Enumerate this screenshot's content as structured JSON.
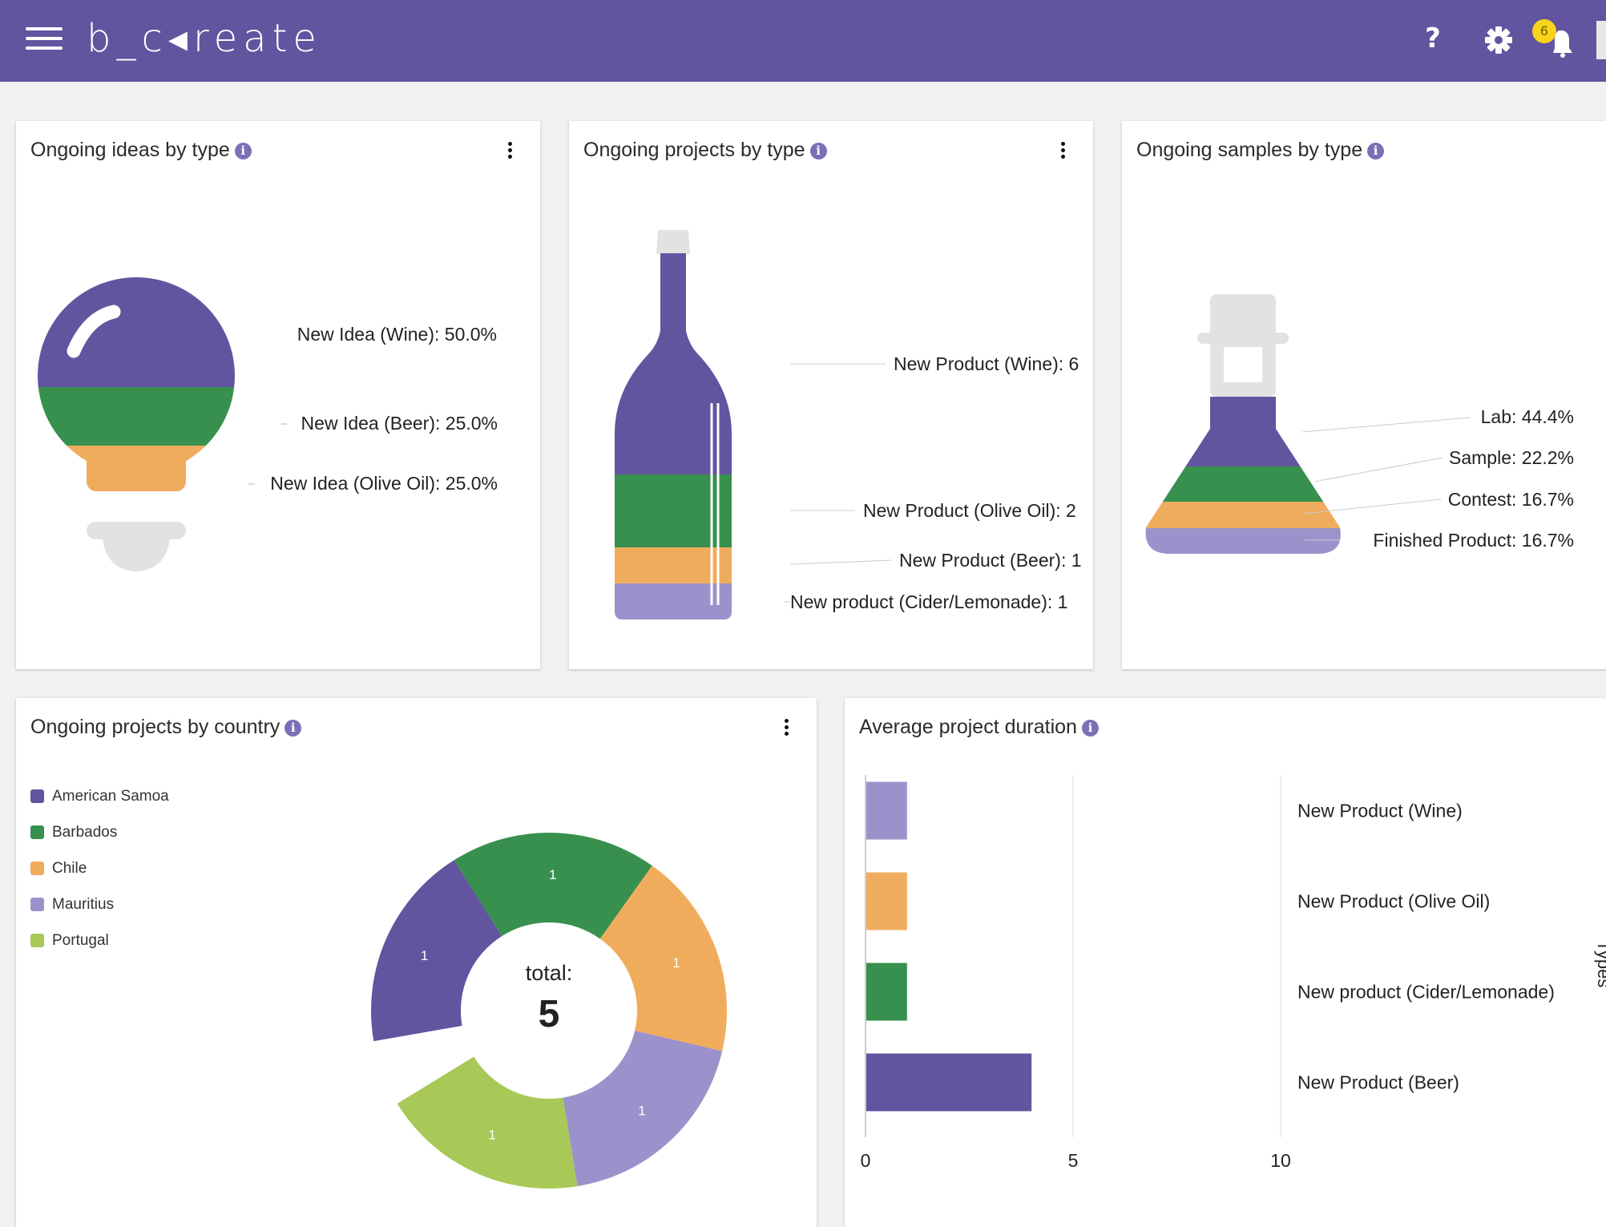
{
  "app": {
    "logo": "b_c◂reate"
  },
  "header": {
    "help_icon": "help-icon",
    "settings_icon": "gear-icon",
    "notifications_icon": "bell-icon",
    "notifications_count": "6"
  },
  "colors": {
    "purple": "#63549f",
    "green": "#38904e",
    "orange": "#f0ac5d",
    "lilac": "#9c92cb",
    "lime": "#a8c957",
    "grey": "#e2e2e2"
  },
  "ideas": {
    "title": "Ongoing ideas by type",
    "chart_data": {
      "type": "pie",
      "title": "Ongoing ideas by type",
      "labels": [
        "New Idea (Wine): 50.0%",
        "New Idea (Beer): 25.0%",
        "New Idea (Olive Oil): 25.0%"
      ],
      "categories": [
        "New Idea (Wine)",
        "New Idea (Beer)",
        "New Idea (Olive Oil)"
      ],
      "values": [
        50.0,
        25.0,
        25.0
      ]
    }
  },
  "projects_type": {
    "title": "Ongoing projects by type",
    "chart_data": {
      "type": "bar",
      "title": "Ongoing projects by type",
      "labels": [
        "New Product (Wine): 6",
        "New Product (Olive Oil): 2",
        "New Product (Beer): 1",
        "New product (Cider/Lemonade): 1"
      ],
      "categories": [
        "New Product (Wine)",
        "New Product (Olive Oil)",
        "New Product (Beer)",
        "New product (Cider/Lemonade)"
      ],
      "values": [
        6,
        2,
        1,
        1
      ]
    }
  },
  "samples": {
    "title": "Ongoing samples by type",
    "chart_data": {
      "type": "pie",
      "title": "Ongoing samples by type",
      "labels": [
        "Lab: 44.4%",
        "Sample: 22.2%",
        "Contest: 16.7%",
        "Finished Product: 16.7%"
      ],
      "categories": [
        "Lab",
        "Sample",
        "Contest",
        "Finished Product"
      ],
      "values": [
        44.4,
        22.2,
        16.7,
        16.7
      ]
    }
  },
  "countries": {
    "title": "Ongoing projects by country",
    "total_label": "total:",
    "total_value": "5",
    "chart_data": {
      "type": "pie",
      "title": "Ongoing projects by country",
      "categories": [
        "American Samoa",
        "Barbados",
        "Chile",
        "Mauritius",
        "Portugal"
      ],
      "values": [
        1,
        1,
        1,
        1,
        1
      ],
      "value_labels": [
        "1",
        "1",
        "1",
        "1",
        "1"
      ],
      "legend": "top-left"
    }
  },
  "duration": {
    "title": "Average project duration",
    "axis_clipped_label": "Types",
    "chart_data": {
      "type": "bar",
      "title": "Average project duration",
      "categories": [
        "New Product (Wine)",
        "New Product (Olive Oil)",
        "New product (Cider/Lemonade)",
        "New Product (Beer)"
      ],
      "values": [
        1,
        1,
        1,
        4
      ],
      "xlim": [
        0,
        10
      ],
      "xticks": [
        "0",
        "5",
        "10"
      ],
      "grid": true
    }
  }
}
